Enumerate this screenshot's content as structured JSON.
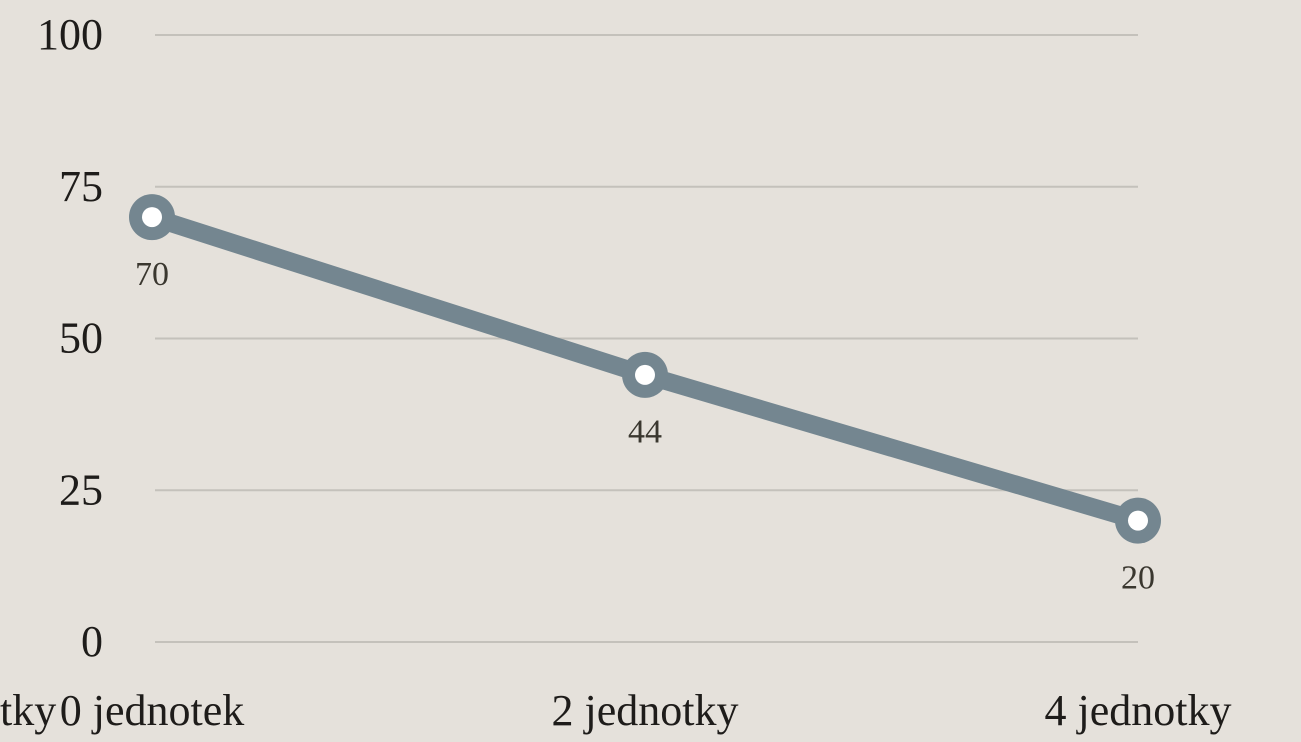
{
  "chart_data": {
    "type": "line",
    "xlabel": "tky",
    "categories": [
      "0 jednotek",
      "2 jednotky",
      "4 jednotky"
    ],
    "series": [
      {
        "name": null,
        "color": "#748690",
        "values": [
          70,
          44,
          20
        ]
      }
    ],
    "ylim": [
      0,
      100
    ],
    "yticks": [
      0,
      25,
      50,
      75,
      100
    ],
    "grid": true
  }
}
